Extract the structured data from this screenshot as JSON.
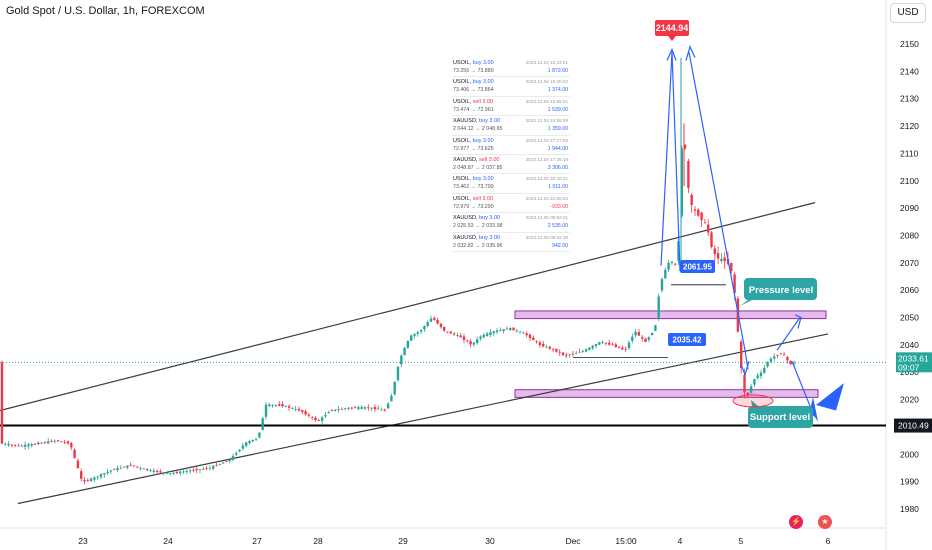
{
  "header": {
    "title": "Gold Spot / U.S. Dollar, 1h, FOREXCOM",
    "currency_button": "USD"
  },
  "colors": {
    "up": "#26a69a",
    "down": "#f23645",
    "blue": "#2962ff",
    "zone": "#e1bee7",
    "zone_border": "#9c27b0",
    "teal_label": "#2fa4a4",
    "channel": "#3b3b3b",
    "support_line": "#000000"
  },
  "chart_data": {
    "type": "candlestick",
    "title": "Gold Spot / U.S. Dollar, 1h, FOREXCOM",
    "ylim": [
      1975,
      2158
    ],
    "x_range": [
      0,
      932
    ],
    "y_ticks": [
      1980,
      1990,
      2000,
      2010,
      2020,
      2030,
      2040,
      2050,
      2060,
      2070,
      2080,
      2090,
      2100,
      2110,
      2120,
      2130,
      2140,
      2150
    ],
    "x_tick_labels": [
      {
        "label": "23",
        "x": 83
      },
      {
        "label": "24",
        "x": 168
      },
      {
        "label": "27",
        "x": 257
      },
      {
        "label": "28",
        "x": 318
      },
      {
        "label": "29",
        "x": 403
      },
      {
        "label": "30",
        "x": 490
      },
      {
        "label": "Dec",
        "x": 573
      },
      {
        "label": "15:00",
        "x": 626
      },
      {
        "label": "4",
        "x": 680
      },
      {
        "label": "5",
        "x": 741
      },
      {
        "label": "6",
        "x": 828
      }
    ],
    "price_path": [
      [
        0,
        2004
      ],
      [
        20,
        2003
      ],
      [
        40,
        2004
      ],
      [
        55,
        2005
      ],
      [
        70,
        2004
      ],
      [
        82,
        1990
      ],
      [
        92,
        1991
      ],
      [
        110,
        1994
      ],
      [
        130,
        1996
      ],
      [
        150,
        1994
      ],
      [
        170,
        1993
      ],
      [
        190,
        1994
      ],
      [
        210,
        1995
      ],
      [
        230,
        1998
      ],
      [
        245,
        2004
      ],
      [
        258,
        2006
      ],
      [
        266,
        2018
      ],
      [
        280,
        2018
      ],
      [
        300,
        2016
      ],
      [
        318,
        2012
      ],
      [
        330,
        2016
      ],
      [
        350,
        2017
      ],
      [
        370,
        2017
      ],
      [
        385,
        2016
      ],
      [
        392,
        2022
      ],
      [
        400,
        2035
      ],
      [
        410,
        2043
      ],
      [
        420,
        2045
      ],
      [
        432,
        2050
      ],
      [
        445,
        2045
      ],
      [
        460,
        2043
      ],
      [
        472,
        2040
      ],
      [
        480,
        2043
      ],
      [
        495,
        2045
      ],
      [
        510,
        2046
      ],
      [
        525,
        2044
      ],
      [
        540,
        2040
      ],
      [
        555,
        2038
      ],
      [
        565,
        2036
      ],
      [
        575,
        2037
      ],
      [
        585,
        2038
      ],
      [
        600,
        2041
      ],
      [
        612,
        2040
      ],
      [
        625,
        2038
      ],
      [
        635,
        2045
      ],
      [
        645,
        2041
      ],
      [
        655,
        2046
      ],
      [
        660,
        2062
      ],
      [
        665,
        2067
      ],
      [
        670,
        2071
      ],
      [
        675,
        2069
      ],
      [
        678,
        2072
      ],
      [
        681,
        2110
      ],
      [
        684,
        2118
      ],
      [
        687,
        2100
      ],
      [
        692,
        2090
      ],
      [
        700,
        2087
      ],
      [
        707,
        2083
      ],
      [
        713,
        2074
      ],
      [
        720,
        2071
      ],
      [
        726,
        2071
      ],
      [
        731,
        2068
      ],
      [
        735,
        2058
      ],
      [
        739,
        2040
      ],
      [
        743,
        2024
      ],
      [
        747,
        2021
      ],
      [
        750,
        2024
      ],
      [
        755,
        2028
      ],
      [
        762,
        2030
      ],
      [
        768,
        2034
      ],
      [
        775,
        2036
      ],
      [
        782,
        2037
      ],
      [
        790,
        2033
      ],
      [
        796,
        2033.61
      ]
    ],
    "last_price": "2033.61",
    "countdown": "09:07",
    "support_price_label": "2010.49",
    "support_line_price": 2010.49,
    "annotations": {
      "peak_label": "2144.94",
      "level_2061": "2061.95",
      "level_2035": "2035.42",
      "pressure_label": "Pressure level",
      "support_label": "Support level"
    }
  },
  "trade_list": [
    {
      "symbol": "USOIL",
      "action": "buy",
      "qty": "3.00",
      "prices": "73.256 → 73.880",
      "time": "2023.12.04 15:23:51",
      "pl": "1 872.00"
    },
    {
      "symbol": "USOIL",
      "action": "buy",
      "qty": "3.00",
      "prices": "73.406 → 73.864",
      "time": "2023.12.04 15:20:22",
      "pl": "1 374.00"
    },
    {
      "symbol": "USOIL",
      "action": "sell",
      "qty": "3.00",
      "prices": "73.474 → 72.961",
      "time": "2023.12.04 15:55:01",
      "pl": "1 539.00"
    },
    {
      "symbol": "XAUUSD",
      "action": "buy",
      "qty": "3.00",
      "prices": "2 044.12 → 2 048.65",
      "time": "2023.12.04 15:55:09",
      "pl": "1 359.00"
    },
    {
      "symbol": "USOIL",
      "action": "buy",
      "qty": "3.00",
      "prices": "72.977 → 73.625",
      "time": "2023.12.04 17:17:56",
      "pl": "1 944.00"
    },
    {
      "symbol": "XAUUSD",
      "action": "sell",
      "qty": "3.00",
      "prices": "2 048.87 → 2 037.85",
      "time": "2023.12.04 17:25:18",
      "pl": "3 306.00"
    },
    {
      "symbol": "USOIL",
      "action": "buy",
      "qty": "3.00",
      "prices": "73.462 → 73.799",
      "time": "2023.12.04 20:40:21",
      "pl": "1 011.00"
    },
    {
      "symbol": "USOIL",
      "action": "sell",
      "qty": "3.00",
      "prices": "72.979 → 73.290",
      "time": "2023.12.04 21:55:52",
      "pl": "-933.00",
      "loss": true
    },
    {
      "symbol": "XAUUSD",
      "action": "buy",
      "qty": "3.00",
      "prices": "2 025.53 → 2 033.98",
      "time": "2023.12.05 08:52:21",
      "pl": "2 535.00"
    },
    {
      "symbol": "XAUUSD",
      "action": "buy",
      "qty": "3.00",
      "prices": "2 032.82 → 2 035.96",
      "time": "2023.12.05 09:52:38",
      "pl": "942.00"
    }
  ]
}
